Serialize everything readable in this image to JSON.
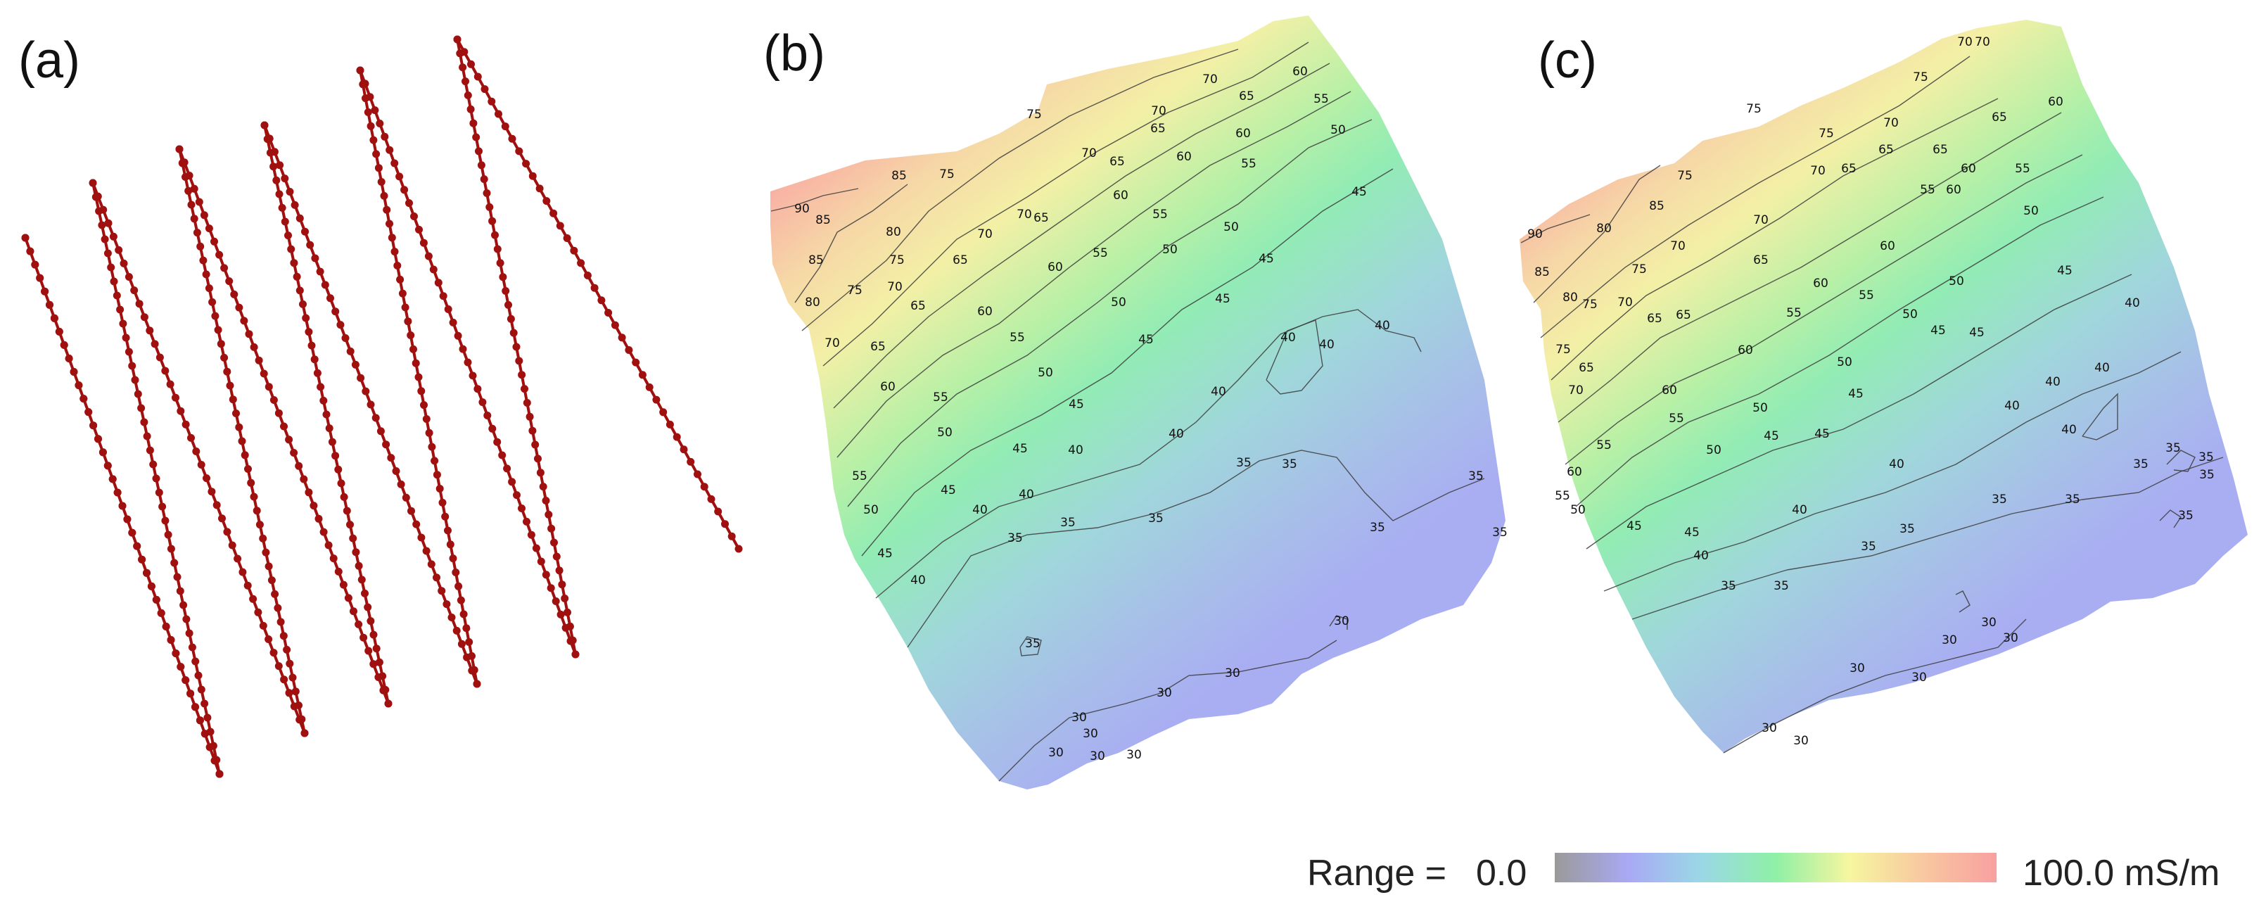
{
  "panels": [
    {
      "id": "a",
      "label": "(a)"
    },
    {
      "id": "b",
      "label": "(b)"
    },
    {
      "id": "c",
      "label": "(c)"
    }
  ],
  "legend": {
    "prefix": "Range =",
    "min": "0.0",
    "max": "100.0 mS/m",
    "gradient_colors": [
      "#9a9a9a",
      "#a9a9f5",
      "#9ad8e6",
      "#8ff0a6",
      "#f6f6a0",
      "#f8c8a0",
      "#f8a0a0"
    ]
  },
  "track": {
    "color": "#a0100f",
    "turn_top": [
      [
        36,
        338
      ],
      [
        132,
        260
      ],
      [
        255,
        212
      ],
      [
        376,
        178
      ],
      [
        512,
        100
      ],
      [
        650,
        56
      ]
    ],
    "turn_bottom": [
      [
        312,
        1100
      ],
      [
        433,
        1042
      ],
      [
        552,
        1000
      ],
      [
        678,
        972
      ],
      [
        818,
        930
      ],
      [
        948,
        850
      ]
    ],
    "start": [
      312,
      1100
    ],
    "end": [
      1050,
      780
    ]
  },
  "maps": [
    {
      "id": "b",
      "contours": [
        {
          "value": 90,
          "labels": [
            [
              1140,
              302
            ]
          ]
        },
        {
          "value": 85,
          "labels": [
            [
              1160,
              375
            ],
            [
              1278,
              255
            ],
            [
              1170,
              318
            ]
          ]
        },
        {
          "value": 80,
          "labels": [
            [
              1155,
              435
            ],
            [
              1270,
              335
            ]
          ]
        },
        {
          "value": 75,
          "labels": [
            [
              1215,
              418
            ],
            [
              1275,
              375
            ],
            [
              1470,
              168
            ],
            [
              1346,
              253
            ]
          ]
        },
        {
          "value": 70,
          "labels": [
            [
              1183,
              493
            ],
            [
              1272,
              413
            ],
            [
              1400,
              338
            ],
            [
              1456,
              310
            ],
            [
              1548,
              223
            ],
            [
              1647,
              163
            ],
            [
              1720,
              118
            ]
          ]
        },
        {
          "value": 65,
          "labels": [
            [
              1248,
              498
            ],
            [
              1305,
              440
            ],
            [
              1365,
              375
            ],
            [
              1480,
              315
            ],
            [
              1588,
              235
            ],
            [
              1646,
              188
            ],
            [
              1772,
              142
            ]
          ]
        },
        {
          "value": 60,
          "labels": [
            [
              1262,
              555
            ],
            [
              1400,
              448
            ],
            [
              1500,
              385
            ],
            [
              1593,
              283
            ],
            [
              1683,
              228
            ],
            [
              1767,
              195
            ],
            [
              1848,
              107
            ]
          ]
        },
        {
          "value": 55,
          "labels": [
            [
              1222,
              682
            ],
            [
              1337,
              570
            ],
            [
              1446,
              485
            ],
            [
              1564,
              365
            ],
            [
              1649,
              310
            ],
            [
              1775,
              238
            ],
            [
              1878,
              146
            ]
          ]
        },
        {
          "value": 50,
          "labels": [
            [
              1238,
              730
            ],
            [
              1343,
              620
            ],
            [
              1486,
              535
            ],
            [
              1590,
              435
            ],
            [
              1663,
              360
            ],
            [
              1750,
              328
            ],
            [
              1902,
              190
            ]
          ]
        },
        {
          "value": 45,
          "labels": [
            [
              1258,
              792
            ],
            [
              1348,
              702
            ],
            [
              1450,
              643
            ],
            [
              1530,
              580
            ],
            [
              1629,
              488
            ],
            [
              1738,
              430
            ],
            [
              1800,
              373
            ],
            [
              1932,
              278
            ]
          ]
        },
        {
          "value": 40,
          "labels": [
            [
              1305,
              830
            ],
            [
              1393,
              730
            ],
            [
              1459,
              708
            ],
            [
              1529,
              645
            ],
            [
              1672,
              622
            ],
            [
              1732,
              562
            ],
            [
              1831,
              485
            ],
            [
              1886,
              495
            ],
            [
              1965,
              468
            ]
          ]
        },
        {
          "value": 35,
          "labels": [
            [
              1443,
              770
            ],
            [
              1518,
              748
            ],
            [
              1643,
              742
            ],
            [
              1768,
              663
            ],
            [
              1833,
              665
            ],
            [
              1958,
              755
            ],
            [
              2098,
              682
            ],
            [
              2132,
              762
            ],
            [
              1468,
              920
            ]
          ]
        },
        {
          "value": 30,
          "labels": [
            [
              1534,
              1025
            ],
            [
              1501,
              1075
            ],
            [
              1550,
              1048
            ],
            [
              1560,
              1080
            ],
            [
              1612,
              1078
            ],
            [
              1655,
              990
            ],
            [
              1752,
              962
            ],
            [
              1907,
              888
            ]
          ]
        }
      ]
    },
    {
      "id": "c",
      "contours": [
        {
          "value": 90,
          "labels": [
            [
              2182,
              338
            ]
          ]
        },
        {
          "value": 85,
          "labels": [
            [
              2192,
              392
            ],
            [
              2355,
              298
            ]
          ]
        },
        {
          "value": 80,
          "labels": [
            [
              2232,
              428
            ],
            [
              2280,
              330
            ]
          ]
        },
        {
          "value": 75,
          "labels": [
            [
              2222,
              502
            ],
            [
              2260,
              438
            ],
            [
              2330,
              388
            ],
            [
              2493,
              160
            ],
            [
              2596,
              195
            ],
            [
              2730,
              115
            ],
            [
              2395,
              255
            ]
          ]
        },
        {
          "value": 70,
          "labels": [
            [
              2240,
              560
            ],
            [
              2310,
              435
            ],
            [
              2385,
              355
            ],
            [
              2503,
              318
            ],
            [
              2584,
              248
            ],
            [
              2688,
              180
            ],
            [
              2793,
              65
            ],
            [
              2818,
              65
            ]
          ]
        },
        {
          "value": 65,
          "labels": [
            [
              2255,
              528
            ],
            [
              2352,
              458
            ],
            [
              2393,
              453
            ],
            [
              2503,
              375
            ],
            [
              2628,
              245
            ],
            [
              2681,
              218
            ],
            [
              2758,
              218
            ],
            [
              2842,
              172
            ]
          ]
        },
        {
          "value": 60,
          "labels": [
            [
              2238,
              676
            ],
            [
              2373,
              560
            ],
            [
              2481,
              503
            ],
            [
              2588,
              408
            ],
            [
              2683,
              355
            ],
            [
              2777,
              275
            ],
            [
              2798,
              245
            ],
            [
              2922,
              150
            ]
          ]
        },
        {
          "value": 55,
          "labels": [
            [
              2221,
              710
            ],
            [
              2280,
              638
            ],
            [
              2383,
              600
            ],
            [
              2550,
              450
            ],
            [
              2653,
              425
            ],
            [
              2740,
              275
            ],
            [
              2875,
              245
            ]
          ]
        },
        {
          "value": 50,
          "labels": [
            [
              2243,
              730
            ],
            [
              2436,
              645
            ],
            [
              2502,
              585
            ],
            [
              2622,
              520
            ],
            [
              2715,
              452
            ],
            [
              2781,
              405
            ],
            [
              2887,
              305
            ]
          ]
        },
        {
          "value": 45,
          "labels": [
            [
              2323,
              753
            ],
            [
              2405,
              762
            ],
            [
              2518,
              625
            ],
            [
              2590,
              622
            ],
            [
              2638,
              565
            ],
            [
              2755,
              475
            ],
            [
              2810,
              478
            ],
            [
              2935,
              390
            ]
          ]
        },
        {
          "value": 40,
          "labels": [
            [
              2418,
              795
            ],
            [
              2558,
              730
            ],
            [
              2696,
              665
            ],
            [
              2860,
              582
            ],
            [
              2918,
              548
            ],
            [
              2988,
              528
            ],
            [
              2941,
              616
            ],
            [
              3031,
              436
            ]
          ]
        },
        {
          "value": 35,
          "labels": [
            [
              2457,
              838
            ],
            [
              2532,
              838
            ],
            [
              2656,
              782
            ],
            [
              2711,
              757
            ],
            [
              2842,
              715
            ],
            [
              2946,
              715
            ],
            [
              3043,
              665
            ],
            [
              3089,
              642
            ],
            [
              3136,
              655
            ],
            [
              3137,
              680
            ],
            [
              3107,
              738
            ]
          ]
        },
        {
          "value": 30,
          "labels": [
            [
              2515,
              1040
            ],
            [
              2560,
              1058
            ],
            [
              2640,
              955
            ],
            [
              2728,
              968
            ],
            [
              2771,
              915
            ],
            [
              2827,
              890
            ],
            [
              2858,
              912
            ]
          ]
        }
      ]
    }
  ]
}
